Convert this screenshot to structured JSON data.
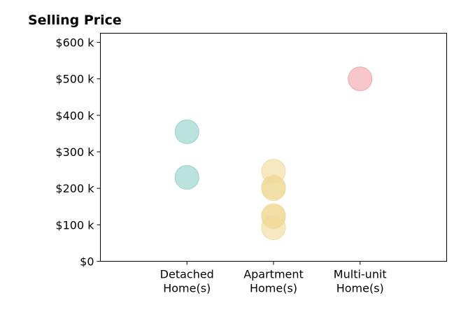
{
  "chart_data": {
    "type": "scatter",
    "title": "Selling Price",
    "xlabel": "",
    "ylabel": "",
    "categories": [
      [
        "Detached",
        "Home(s)"
      ],
      [
        "Apartment",
        "Home(s)"
      ],
      [
        "Multi-unit",
        "Home(s)"
      ]
    ],
    "ylim": [
      0,
      625000
    ],
    "y_ticks": [
      0,
      100000,
      200000,
      300000,
      400000,
      500000,
      600000
    ],
    "y_tick_labels": [
      "$0",
      "$100 k",
      "$200 k",
      "$300 k",
      "$400 k",
      "$500 k",
      "$600 k"
    ],
    "grid": false,
    "legend": "none",
    "series": [
      {
        "category_index": 0,
        "color": "#8fcfc6",
        "values": [
          355000,
          230000
        ]
      },
      {
        "category_index": 1,
        "color": "#f0d898",
        "values": [
          247000,
          203000,
          199000,
          125000,
          122000,
          92000
        ]
      },
      {
        "category_index": 2,
        "color": "#f2a0a8",
        "values": [
          500000
        ]
      }
    ]
  }
}
